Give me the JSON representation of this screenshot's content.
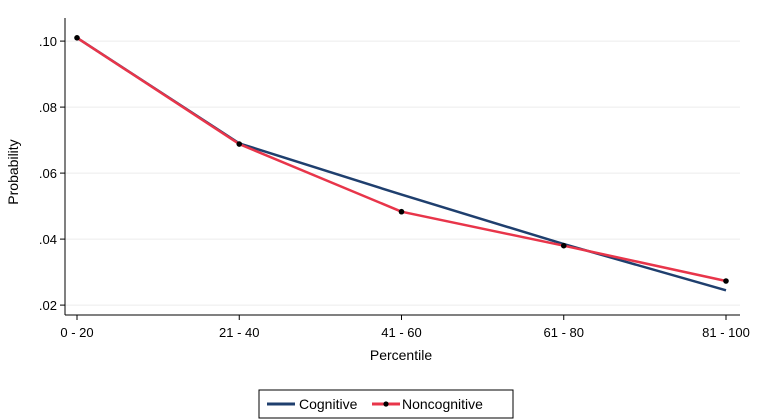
{
  "chart_data": {
    "type": "line",
    "title": "",
    "xlabel": "Percentile",
    "ylabel": "Probability",
    "categories": [
      "0 - 20",
      "21 - 40",
      "41 - 60",
      "61 - 80",
      "81 - 100"
    ],
    "ylim": [
      0.017,
      0.107
    ],
    "yticks": [
      ".02",
      ".04",
      ".06",
      ".08",
      ".10"
    ],
    "ytick_values": [
      0.02,
      0.04,
      0.06,
      0.08,
      0.1
    ],
    "grid": "horizontal",
    "legend_position": "bottom",
    "series": [
      {
        "name": "Cognitive",
        "values": [
          0.101,
          0.069,
          0.0535,
          0.0385,
          0.0245
        ],
        "color": "#1f3f6e",
        "markers": false
      },
      {
        "name": "Noncognitive",
        "values": [
          0.101,
          0.0688,
          0.0483,
          0.038,
          0.0273
        ],
        "color": "#e8354a",
        "markers": true,
        "marker_color": "#000000"
      }
    ]
  }
}
